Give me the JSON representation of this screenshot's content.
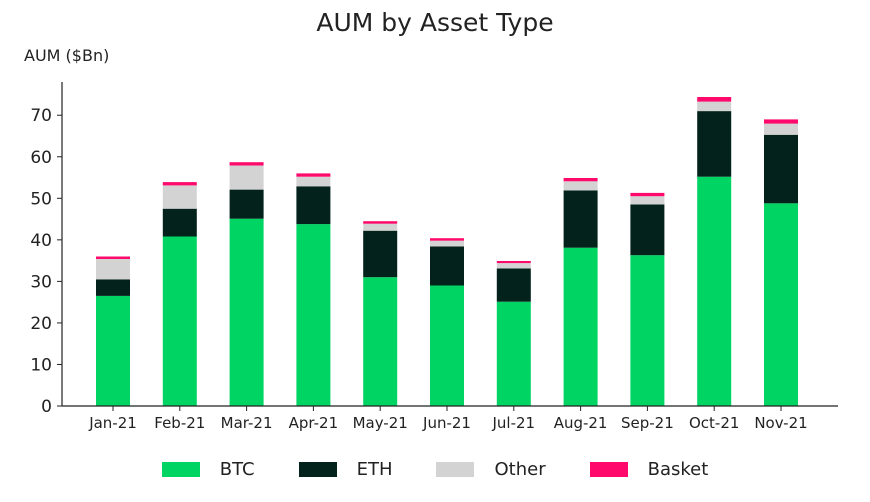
{
  "chart_data": {
    "type": "bar",
    "stacked": true,
    "title": "AUM by Asset Type",
    "ylabel": "AUM ($Bn)",
    "xlabel": "",
    "ylim": [
      0,
      78
    ],
    "yticks": [
      0,
      10,
      20,
      30,
      40,
      50,
      60,
      70
    ],
    "categories": [
      "Jan-21",
      "Feb-21",
      "Mar-21",
      "Apr-21",
      "May-21",
      "Jun-21",
      "Jul-21",
      "Aug-21",
      "Sep-21",
      "Oct-21",
      "Nov-21"
    ],
    "series": [
      {
        "name": "BTC",
        "color": "#00d564",
        "values": [
          26.5,
          40.8,
          45.1,
          43.8,
          31.0,
          29.0,
          25.1,
          38.1,
          36.3,
          55.2,
          48.8
        ]
      },
      {
        "name": "ETH",
        "color": "#04221c",
        "values": [
          4.0,
          6.7,
          7.0,
          9.1,
          11.2,
          9.4,
          8.0,
          13.8,
          12.2,
          15.8,
          16.5
        ]
      },
      {
        "name": "Other",
        "color": "#d3d3d3",
        "values": [
          4.9,
          5.6,
          5.8,
          2.3,
          1.7,
          1.4,
          1.3,
          2.2,
          2.0,
          2.3,
          2.7
        ]
      },
      {
        "name": "Basket",
        "color": "#ff0a6c",
        "values": [
          0.6,
          0.8,
          0.8,
          0.8,
          0.6,
          0.6,
          0.5,
          0.8,
          0.8,
          1.1,
          1.0
        ]
      }
    ],
    "grid": false,
    "legend_position": "bottom"
  }
}
